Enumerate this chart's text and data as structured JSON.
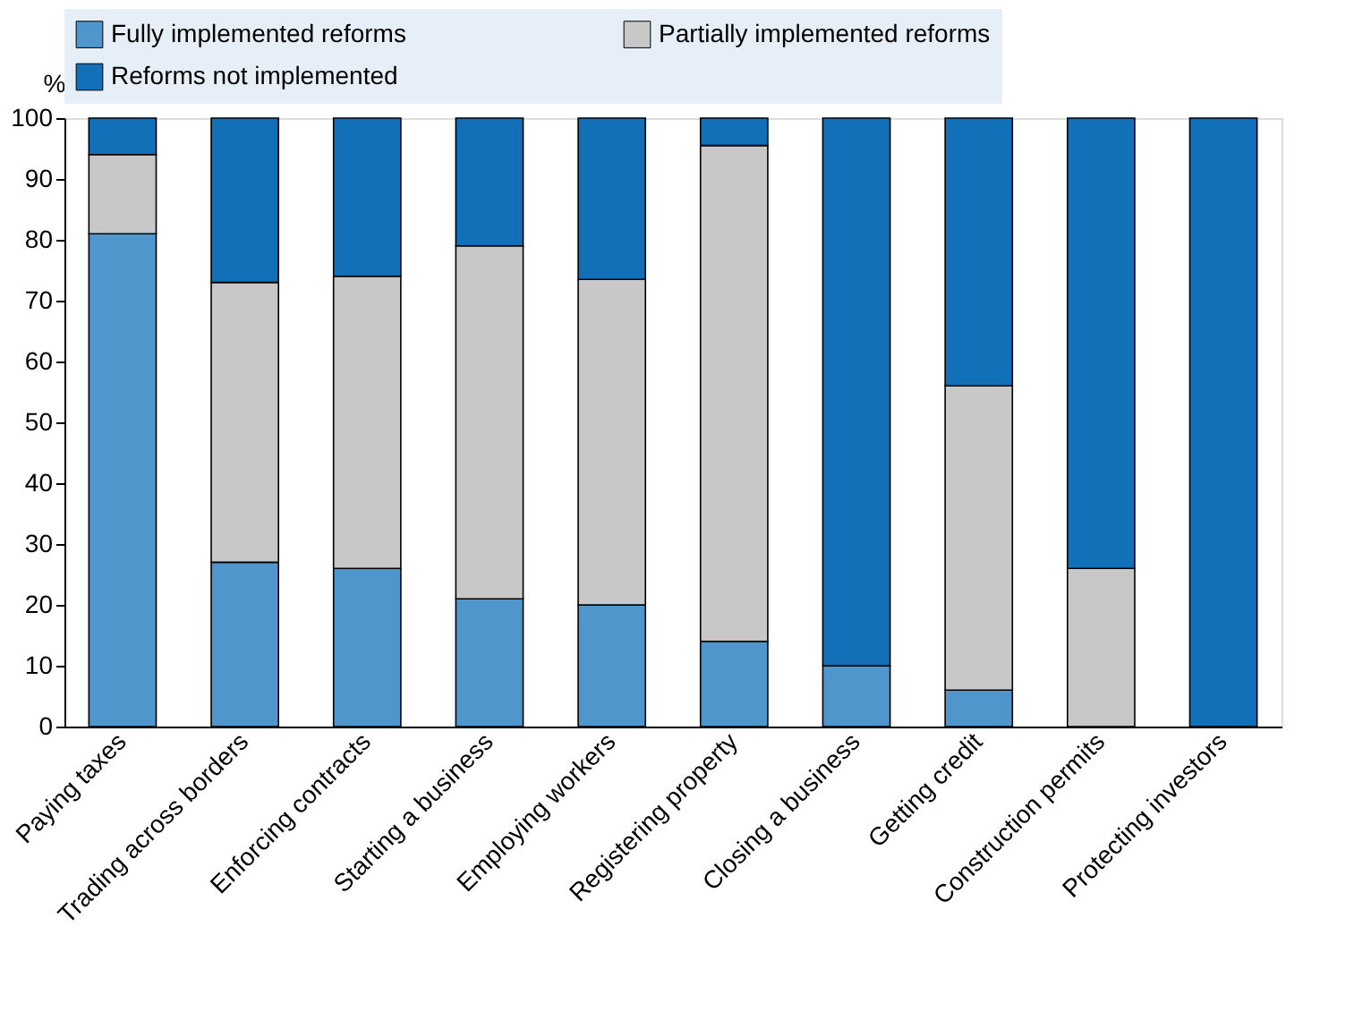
{
  "chart_data": {
    "type": "bar",
    "stacked": true,
    "ylabel": "%",
    "legend": "top",
    "categories": [
      "Paying taxes",
      "Trading across borders",
      "Enforcing contracts",
      "Starting a business",
      "Employing workers",
      "Registering property",
      "Closing a business",
      "Getting credit",
      "Construction permits",
      "Protecting investors"
    ],
    "series": [
      {
        "name": "Fully implemented reforms",
        "color": "#4f96cd",
        "values": [
          81,
          27,
          26,
          21,
          20,
          14,
          10,
          6,
          0,
          0
        ]
      },
      {
        "name": "Partially implemented reforms",
        "color": "#c8c8c8",
        "values": [
          13,
          46,
          48,
          58,
          53.5,
          81.5,
          0,
          50,
          26,
          0
        ]
      },
      {
        "name": "Reforms not implemented",
        "color": "#1170b8",
        "values": [
          6,
          27,
          26,
          21,
          26.5,
          4.5,
          90,
          44,
          74,
          100
        ]
      }
    ],
    "ylim": [
      0,
      100
    ],
    "yticks": [
      0,
      10,
      20,
      30,
      40,
      50,
      60,
      70,
      80,
      90,
      100
    ],
    "grid": false
  }
}
